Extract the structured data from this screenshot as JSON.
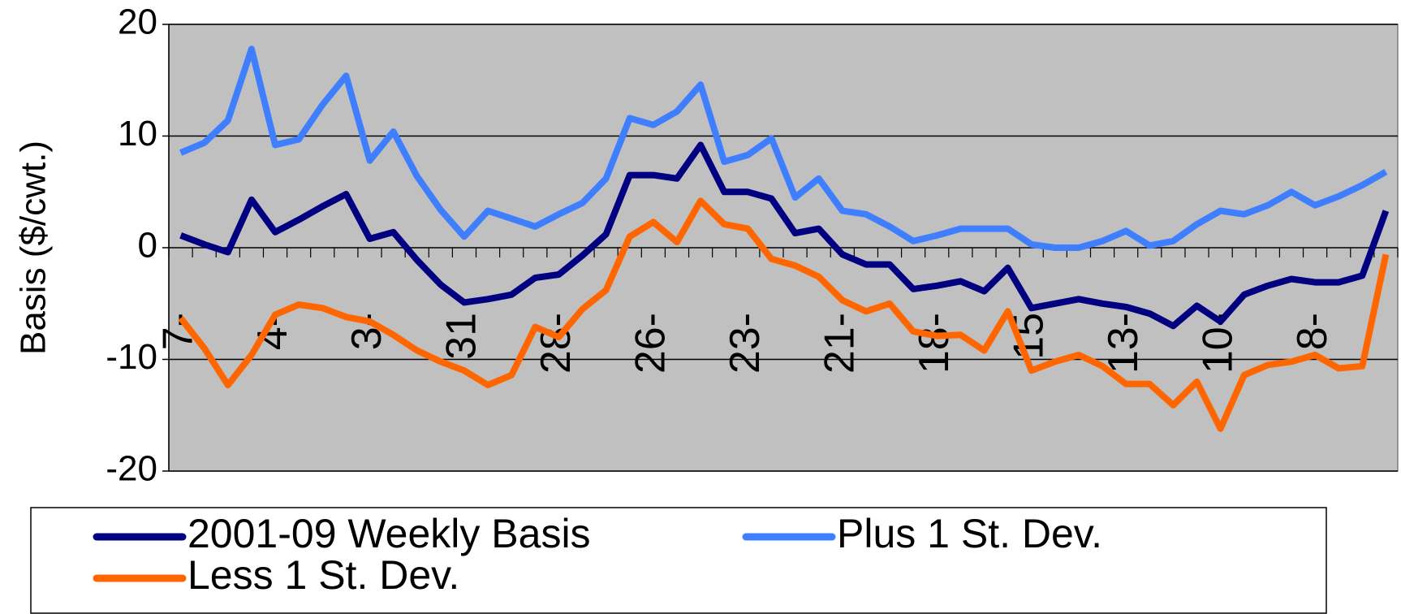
{
  "chart_data": {
    "type": "line",
    "y_label": "Basis ($/cwt.)",
    "categories": [
      "7-",
      null,
      null,
      null,
      "4-",
      null,
      null,
      null,
      "3-",
      null,
      null,
      null,
      "31",
      null,
      null,
      null,
      "28-",
      null,
      null,
      null,
      "26-",
      null,
      null,
      null,
      "23-",
      null,
      null,
      null,
      "21-",
      null,
      null,
      null,
      "18-",
      null,
      null,
      null,
      "15",
      null,
      null,
      null,
      "13-",
      null,
      null,
      null,
      "10-",
      null,
      null,
      null,
      "8-",
      null,
      null,
      null
    ],
    "series": [
      {
        "name": "2001-09 Weekly Basis",
        "color": "#000080",
        "values": [
          1.1,
          0.3,
          -0.4,
          4.3,
          1.4,
          2.5,
          3.7,
          4.8,
          0.8,
          1.4,
          -1.1,
          -3.3,
          -4.9,
          -4.6,
          -4.2,
          -2.7,
          -2.4,
          -0.7,
          1.2,
          6.5,
          6.5,
          6.2,
          9.2,
          5.0,
          5.0,
          4.4,
          1.3,
          1.7,
          -0.6,
          -1.5,
          -1.5,
          -3.7,
          -3.4,
          -3.0,
          -3.9,
          -1.8,
          -5.4,
          -5.0,
          -4.6,
          -5.0,
          -5.3,
          -5.9,
          -7.0,
          -5.2,
          -6.6,
          -4.2,
          -3.4,
          -2.8,
          -3.1,
          -3.1,
          -2.5,
          3.3
        ]
      },
      {
        "name": "Plus 1 St. Dev.",
        "color": "#3f7fff",
        "values": [
          8.5,
          9.4,
          11.4,
          17.8,
          9.2,
          9.7,
          12.8,
          15.4,
          7.8,
          10.4,
          6.4,
          3.4,
          1.0,
          3.3,
          2.6,
          1.9,
          3.0,
          4.0,
          6.2,
          11.6,
          11.0,
          12.2,
          14.6,
          7.7,
          8.3,
          9.8,
          4.5,
          6.2,
          3.3,
          3.0,
          1.9,
          0.6,
          1.1,
          1.7,
          1.7,
          1.7,
          0.3,
          0,
          0,
          0.6,
          1.5,
          0.2,
          0.6,
          2.1,
          3.3,
          3.0,
          3.8,
          5.0,
          3.8,
          4.6,
          5.6,
          6.8
        ]
      },
      {
        "name": "Less 1 St. Dev.",
        "color": "#ff6600",
        "values": [
          -6.3,
          -9.0,
          -12.3,
          -9.6,
          -6.0,
          -5.1,
          -5.4,
          -6.2,
          -6.6,
          -7.8,
          -9.2,
          -10.2,
          -11.0,
          -12.3,
          -11.4,
          -7.1,
          -8.0,
          -5.5,
          -3.8,
          1.0,
          2.3,
          0.5,
          4.2,
          2.1,
          1.7,
          -1.0,
          -1.6,
          -2.6,
          -4.7,
          -5.7,
          -5.0,
          -7.5,
          -7.9,
          -7.8,
          -9.2,
          -5.7,
          -11.0,
          -10.2,
          -9.6,
          -10.6,
          -12.2,
          -12.2,
          -14.1,
          -12.0,
          -16.2,
          -11.4,
          -10.5,
          -10.2,
          -9.6,
          -10.8,
          -10.6,
          -0.6
        ]
      }
    ],
    "ylim": [
      -20,
      20
    ],
    "yticks": [
      -20,
      -10,
      0,
      10,
      20
    ],
    "grid": true,
    "legend": "bottom"
  }
}
